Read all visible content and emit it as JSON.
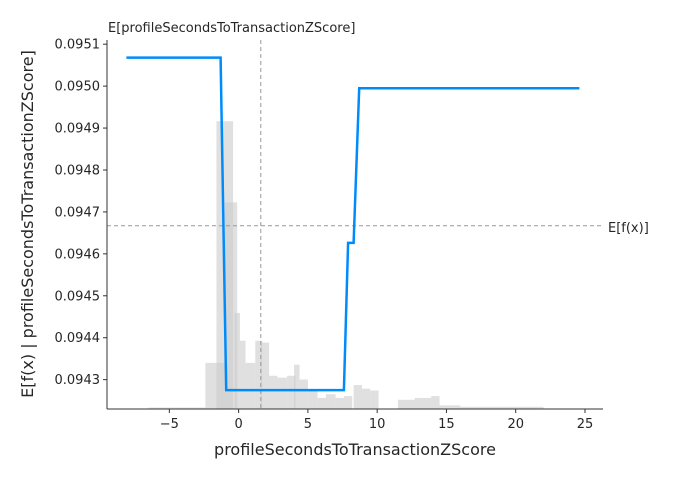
{
  "chart_data": {
    "type": "line",
    "xlabel": "profileSecondsToTransactionZScore",
    "ylabel": "E[f(x) | profileSecondsToTransactionZScore]",
    "xlim": [
      -9.5,
      26.3
    ],
    "ylim": [
      0.09423,
      0.09511
    ],
    "x_ticks": [
      -5,
      0,
      5,
      10,
      15,
      20,
      25
    ],
    "y_ticks": [
      0.0943,
      0.0944,
      0.0945,
      0.0946,
      0.0947,
      0.0948,
      0.0949,
      0.095,
      0.0951
    ],
    "y_tick_labels": [
      "0.0943",
      "0.0944",
      "0.0945",
      "0.0946",
      "0.0947",
      "0.0948",
      "0.0949",
      "0.0950",
      "0.0951"
    ],
    "x_tick_labels": [
      "−5",
      "0",
      "5",
      "10",
      "15",
      "20",
      "25"
    ],
    "expected_feature_value": {
      "x": 1.6,
      "label": "E[profileSecondsToTransactionZScore]"
    },
    "expected_prediction": {
      "y": 0.094667,
      "label": "E[f(x)]"
    },
    "series": [
      {
        "color": "#008bfb",
        "points": [
          [
            -8.1,
            0.095068
          ],
          [
            -1.3,
            0.095068
          ],
          [
            -0.9,
            0.094275
          ],
          [
            7.6,
            0.094275
          ],
          [
            7.9,
            0.094626
          ],
          [
            8.3,
            0.094626
          ],
          [
            8.7,
            0.094995
          ],
          [
            24.6,
            0.094995
          ]
        ]
      }
    ],
    "histogram": {
      "color": "#cccccc",
      "bins": [
        [
          -2.4,
          -1.0,
          0.125
        ],
        [
          -1.6,
          -0.4,
          0.78
        ],
        [
          -1.0,
          -0.1,
          0.56
        ],
        [
          -0.3,
          0.1,
          0.26
        ],
        [
          0.1,
          0.5,
          0.185
        ],
        [
          0.5,
          1.2,
          0.125
        ],
        [
          1.2,
          1.7,
          0.185
        ],
        [
          1.6,
          2.2,
          0.18
        ],
        [
          2.2,
          2.8,
          0.09
        ],
        [
          2.8,
          3.5,
          0.085
        ],
        [
          3.5,
          4.1,
          0.09
        ],
        [
          4.0,
          4.4,
          0.12
        ],
        [
          4.4,
          5.0,
          0.08
        ],
        [
          5.0,
          5.7,
          0.05
        ],
        [
          5.7,
          6.3,
          0.03
        ],
        [
          6.3,
          7.0,
          0.04
        ],
        [
          7.0,
          7.6,
          0.03
        ],
        [
          7.6,
          8.2,
          0.035
        ],
        [
          8.3,
          8.9,
          0.065
        ],
        [
          8.9,
          9.5,
          0.055
        ],
        [
          9.5,
          10.1,
          0.05
        ],
        [
          11.5,
          12.7,
          0.025
        ],
        [
          12.7,
          13.9,
          0.03
        ],
        [
          13.9,
          14.5,
          0.035
        ],
        [
          14.5,
          16.0,
          0.01
        ],
        [
          16.0,
          22.0,
          0.006
        ],
        [
          -6.5,
          -2.4,
          0.004
        ]
      ]
    }
  }
}
